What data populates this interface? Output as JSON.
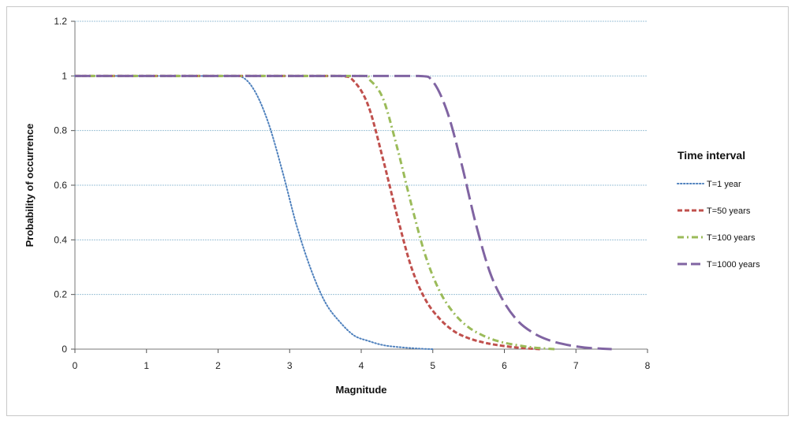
{
  "chart_data": {
    "type": "line",
    "title": "",
    "xlabel": "Magnitude",
    "ylabel": "Probability of occurrence",
    "xlim": [
      0,
      8
    ],
    "ylim": [
      0,
      1.2
    ],
    "x_ticks": [
      "0",
      "1",
      "2",
      "3",
      "4",
      "5",
      "6",
      "7",
      "8"
    ],
    "y_ticks": [
      "0",
      "0.2",
      "0.4",
      "0.6",
      "0.8",
      "1",
      "1.2"
    ],
    "grid": "horizontal",
    "legend": {
      "title": "Time interval",
      "position": "right"
    },
    "series": [
      {
        "name": "T=1 year",
        "color": "#4f81bd",
        "dash": "dotted",
        "x": [
          0,
          1,
          2,
          2.3,
          2.5,
          2.7,
          2.9,
          3.1,
          3.3,
          3.5,
          3.7,
          3.9,
          4.1,
          4.3,
          4.5,
          4.8,
          5.0
        ],
        "y": [
          1,
          1,
          1,
          1,
          0.95,
          0.83,
          0.65,
          0.45,
          0.29,
          0.17,
          0.1,
          0.05,
          0.03,
          0.015,
          0.008,
          0.002,
          0
        ]
      },
      {
        "name": "T=50 years",
        "color": "#c0504d",
        "dash": "dashed",
        "x": [
          0,
          1,
          2,
          3,
          3.7,
          3.9,
          4.1,
          4.3,
          4.5,
          4.7,
          4.9,
          5.1,
          5.3,
          5.5,
          5.7,
          5.9,
          6.2,
          6.5
        ],
        "y": [
          1,
          1,
          1,
          1,
          1,
          0.98,
          0.89,
          0.7,
          0.49,
          0.3,
          0.18,
          0.11,
          0.065,
          0.04,
          0.025,
          0.015,
          0.005,
          0
        ]
      },
      {
        "name": "T=100 years",
        "color": "#9bbb59",
        "dash": "dash-dot",
        "x": [
          0,
          1,
          2,
          3,
          4,
          4.1,
          4.3,
          4.5,
          4.7,
          4.9,
          5.1,
          5.3,
          5.5,
          5.7,
          5.9,
          6.1,
          6.4,
          6.7
        ],
        "y": [
          1,
          1,
          1,
          1,
          1,
          0.99,
          0.92,
          0.74,
          0.53,
          0.34,
          0.21,
          0.13,
          0.08,
          0.05,
          0.03,
          0.018,
          0.006,
          0
        ]
      },
      {
        "name": "T=1000 years",
        "color": "#8064a2",
        "dash": "long-dash",
        "x": [
          0,
          1,
          2,
          3,
          4,
          4.8,
          5.0,
          5.2,
          5.4,
          5.6,
          5.8,
          6.0,
          6.2,
          6.4,
          6.6,
          6.8,
          7.0,
          7.2,
          7.5
        ],
        "y": [
          1,
          1,
          1,
          1,
          1,
          1,
          0.98,
          0.87,
          0.68,
          0.46,
          0.28,
          0.17,
          0.1,
          0.06,
          0.035,
          0.02,
          0.01,
          0.004,
          0
        ]
      }
    ]
  }
}
